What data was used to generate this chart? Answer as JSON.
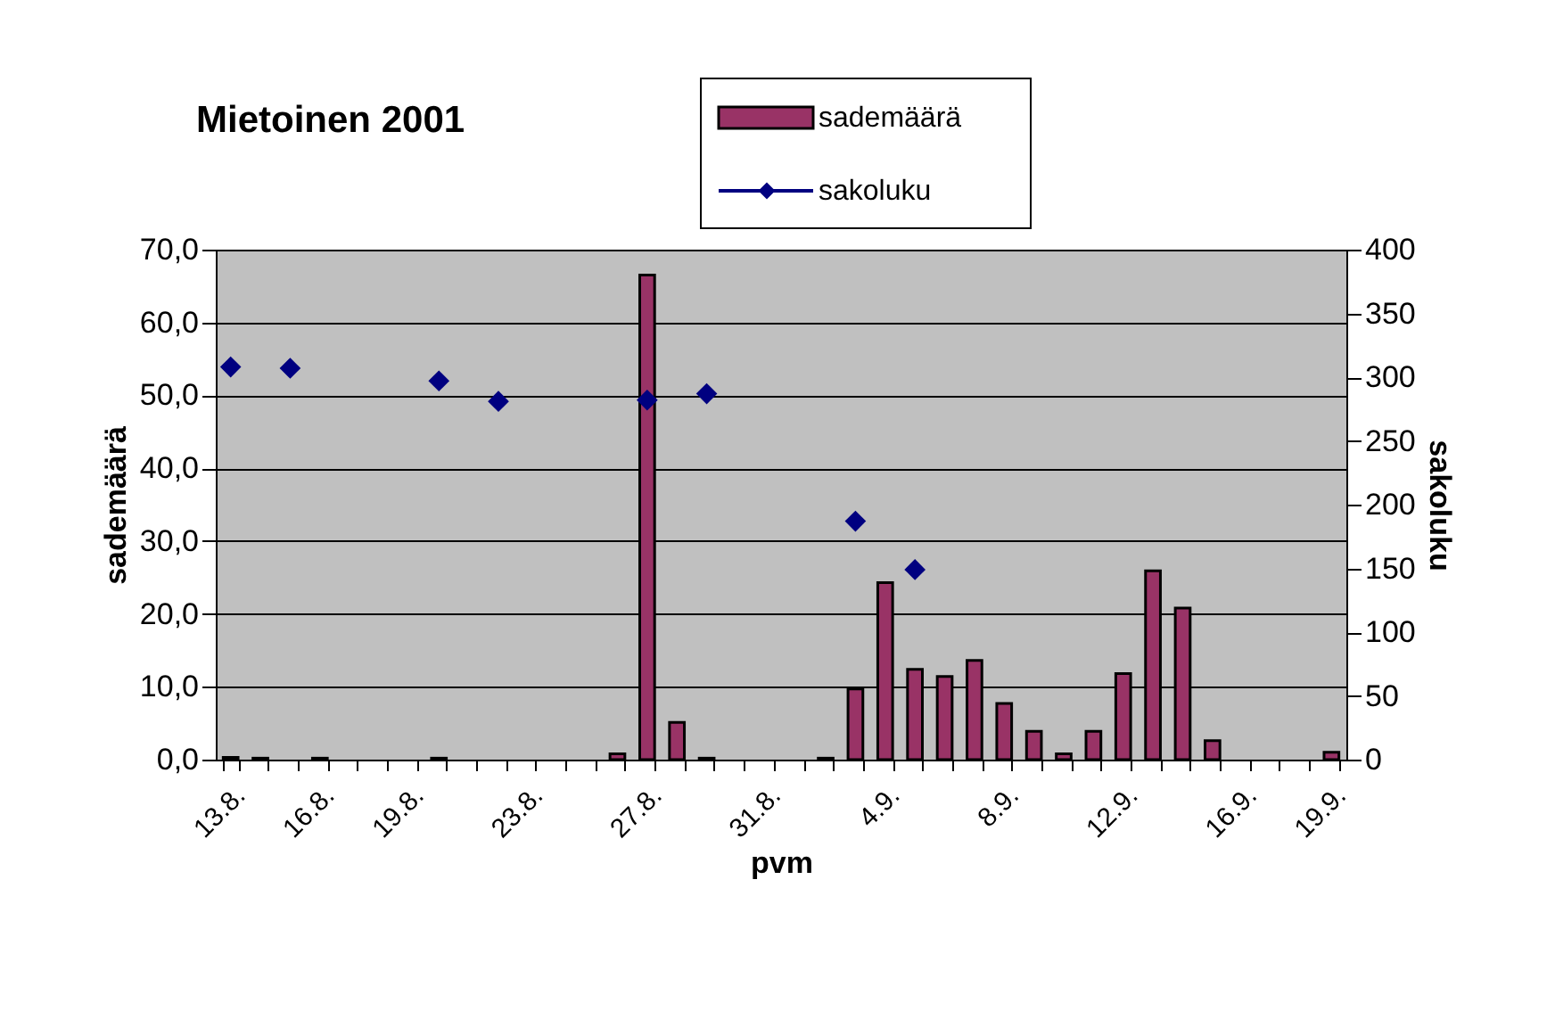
{
  "chart_data": {
    "type": "bar",
    "title": "Mietoinen 2001",
    "xlabel": "pvm",
    "ylabel": "sademäärä",
    "y2label": "sakoluku",
    "categories": [
      "13.8.",
      null,
      null,
      "16.8.",
      null,
      null,
      "19.8.",
      null,
      null,
      null,
      "23.8.",
      null,
      null,
      null,
      "27.8.",
      null,
      null,
      null,
      "31.8.",
      null,
      null,
      null,
      "4.9.",
      null,
      null,
      null,
      "8.9.",
      null,
      null,
      null,
      "12.9.",
      null,
      null,
      null,
      "16.9.",
      null,
      null,
      "19.9."
    ],
    "series": [
      {
        "name": "sademäärä",
        "color": "#993366",
        "values": [
          0.3,
          0.2,
          null,
          0.2,
          null,
          null,
          null,
          0.2,
          null,
          null,
          null,
          null,
          null,
          0.8,
          66.5,
          5.1,
          0.2,
          null,
          null,
          null,
          0.2,
          9.7,
          24.3,
          12.4,
          11.4,
          13.6,
          7.7,
          3.9,
          0.8,
          3.9,
          11.8,
          25.9,
          20.8,
          2.6,
          null,
          null,
          null,
          1.0
        ]
      },
      {
        "name": "sakoluku",
        "type": "scatter",
        "axis": "y2",
        "marker": "diamond",
        "color": "#000080",
        "values": [
          308,
          null,
          307,
          null,
          null,
          null,
          null,
          297,
          null,
          281,
          null,
          null,
          null,
          null,
          282,
          null,
          287,
          null,
          null,
          null,
          null,
          187,
          null,
          149,
          null,
          null,
          null,
          null,
          null,
          null,
          null,
          null,
          null,
          null,
          null,
          null,
          null,
          null
        ]
      }
    ],
    "ylim": [
      0,
      70
    ],
    "yticks": [
      {
        "value": 0,
        "label": "0,0"
      },
      {
        "value": 10,
        "label": "10,0"
      },
      {
        "value": 20,
        "label": "20,0"
      },
      {
        "value": 30,
        "label": "30,0"
      },
      {
        "value": 40,
        "label": "40,0"
      },
      {
        "value": 50,
        "label": "50,0"
      },
      {
        "value": 60,
        "label": "60,0"
      },
      {
        "value": 70,
        "label": "70,0"
      }
    ],
    "y2lim": [
      0,
      400
    ],
    "y2ticks": [
      0,
      50,
      100,
      150,
      200,
      250,
      300,
      350,
      400
    ],
    "grid": "y",
    "legend": "top"
  }
}
